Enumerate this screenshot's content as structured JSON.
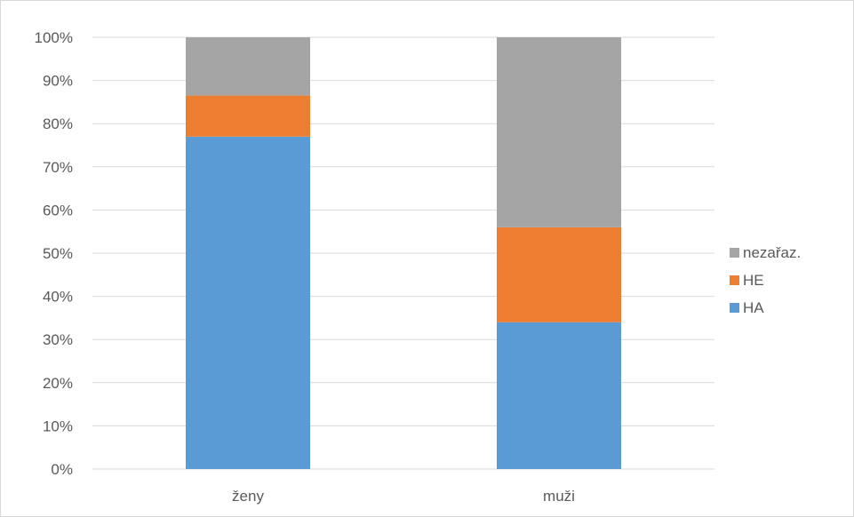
{
  "chart_data": {
    "type": "bar",
    "stacked": true,
    "percent_stacked": true,
    "categories": [
      "ženy",
      "muži"
    ],
    "series": [
      {
        "name": "HA",
        "values": [
          77,
          34
        ],
        "color": "#5b9bd5"
      },
      {
        "name": "HE",
        "values": [
          9.5,
          22
        ],
        "color": "#ed7d31"
      },
      {
        "name": "nezařaz.",
        "values": [
          13.5,
          44
        ],
        "color": "#a5a5a5"
      }
    ],
    "y_ticks": [
      "0%",
      "10%",
      "20%",
      "30%",
      "40%",
      "50%",
      "60%",
      "70%",
      "80%",
      "90%",
      "100%"
    ],
    "ylim": [
      0,
      100
    ],
    "grid": true,
    "legend_position": "right",
    "legend_order": [
      "nezařaz.",
      "HE",
      "HA"
    ]
  }
}
